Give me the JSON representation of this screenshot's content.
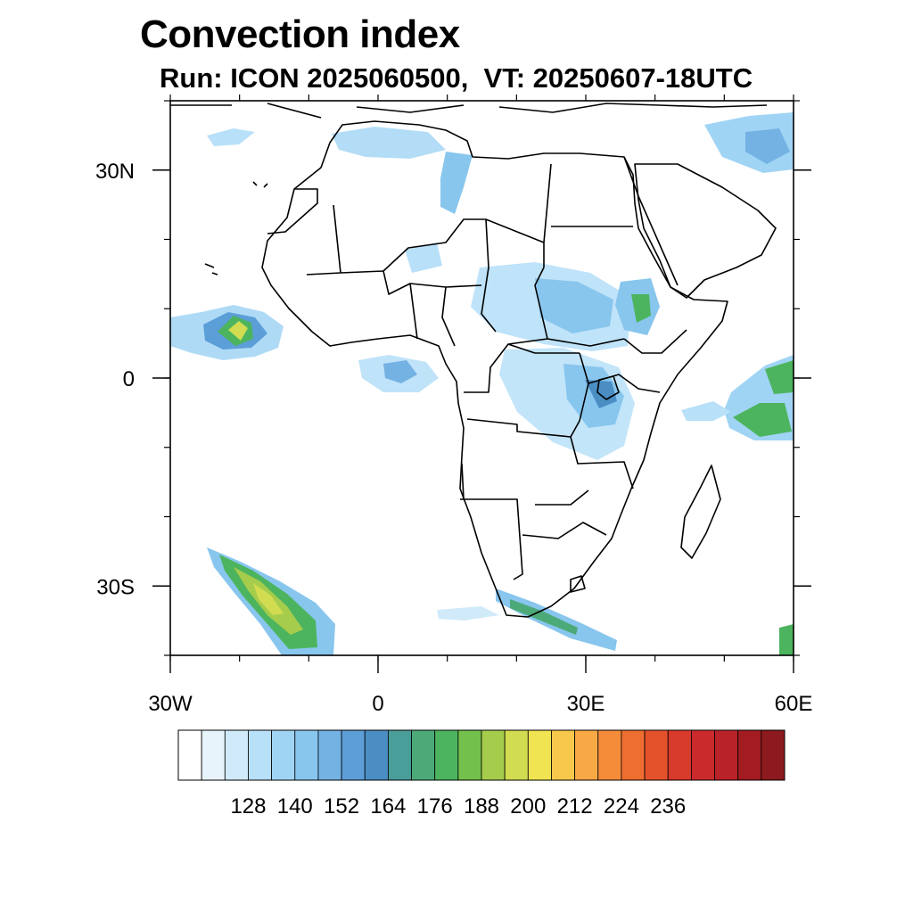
{
  "title": "Convection index",
  "subtitle": "Run: ICON 2025060500,  VT: 20250607-18UTC",
  "map": {
    "lon_range": [
      -30,
      60
    ],
    "lat_range": [
      -40,
      40
    ],
    "lon_ticks": [
      {
        "value": -30,
        "label": "30W"
      },
      {
        "value": 0,
        "label": "0"
      },
      {
        "value": 30,
        "label": "30E"
      },
      {
        "value": 60,
        "label": "60E"
      }
    ],
    "lat_ticks": [
      {
        "value": 30,
        "label": "30N"
      },
      {
        "value": 0,
        "label": "0"
      },
      {
        "value": -30,
        "label": "30S"
      }
    ]
  },
  "colorbar": {
    "labels": [
      "128",
      "140",
      "152",
      "164",
      "176",
      "188",
      "200",
      "212",
      "224",
      "236"
    ],
    "colors": [
      "#ffffff",
      "#e8f4fc",
      "#d0eafa",
      "#b8e0f8",
      "#a0d4f4",
      "#88c6ee",
      "#74b2e4",
      "#5c9ed8",
      "#4a8ec4",
      "#4a9e9a",
      "#4caa78",
      "#4cb45e",
      "#74c04c",
      "#a6cc4c",
      "#d2dc50",
      "#f0e452",
      "#f8c84c",
      "#f8a844",
      "#f48c3a",
      "#ee6e30",
      "#e4522c",
      "#d83a2c",
      "#ca2a2c",
      "#b82228",
      "#a21c22",
      "#8c1a1e"
    ]
  }
}
